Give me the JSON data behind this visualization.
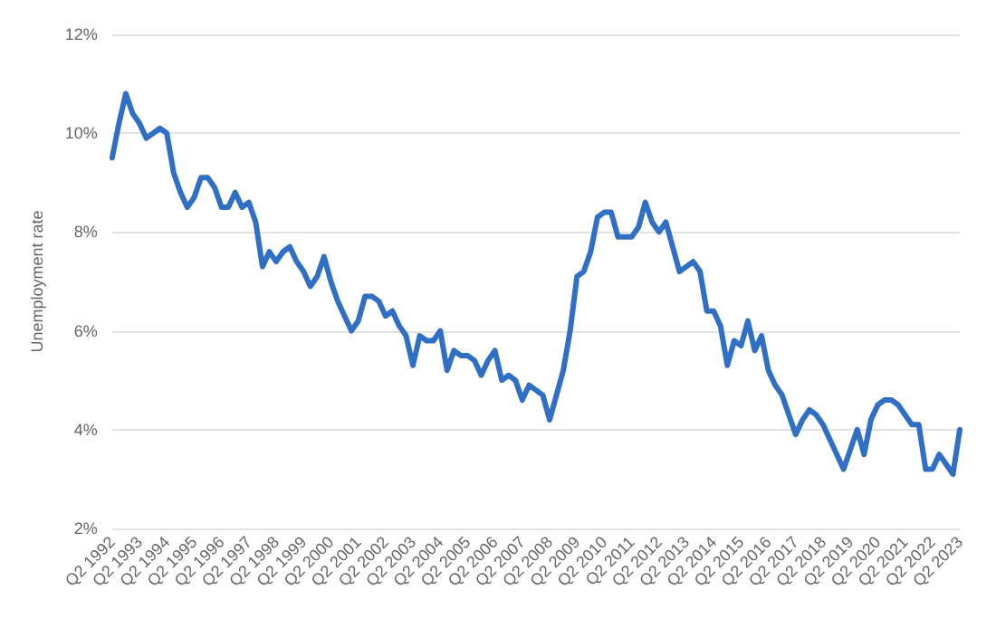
{
  "chart_data": {
    "type": "line",
    "ylabel": "Unemployment rate",
    "categories": [
      "Q2 1992",
      null,
      null,
      null,
      "Q2 1993",
      null,
      null,
      null,
      "Q2 1994",
      null,
      null,
      null,
      "Q2 1995",
      null,
      null,
      null,
      "Q2 1996",
      null,
      null,
      null,
      "Q2 1997",
      null,
      null,
      null,
      "Q2 1998",
      null,
      null,
      null,
      "Q2 1999",
      null,
      null,
      null,
      "Q2 2000",
      null,
      null,
      null,
      "Q2 2001",
      null,
      null,
      null,
      "Q2 2002",
      null,
      null,
      null,
      "Q2 2003",
      null,
      null,
      null,
      "Q2 2004",
      null,
      null,
      null,
      "Q2 2005",
      null,
      null,
      null,
      "Q2 2006",
      null,
      null,
      null,
      "Q2 2007",
      null,
      null,
      null,
      "Q2 2008",
      null,
      null,
      null,
      "Q2 2009",
      null,
      null,
      null,
      "Q2 2010",
      null,
      null,
      null,
      "Q2 2011",
      null,
      null,
      null,
      "Q2 2012",
      null,
      null,
      null,
      "Q2 2013",
      null,
      null,
      null,
      "Q2 2014",
      null,
      null,
      null,
      "Q2 2015",
      null,
      null,
      null,
      "Q2 2016",
      null,
      null,
      null,
      "Q2 2017",
      null,
      null,
      null,
      "Q2 2018",
      null,
      null,
      null,
      "Q2 2019",
      null,
      null,
      null,
      "Q2 2020",
      null,
      null,
      null,
      "Q2 2021",
      null,
      null,
      null,
      "Q2 2022",
      null,
      null,
      null,
      "Q2 2023"
    ],
    "series": [
      {
        "color": "#2f6fc6",
        "values": [
          9.5,
          10.2,
          10.8,
          10.4,
          10.2,
          9.9,
          10.0,
          10.1,
          10.0,
          9.2,
          8.8,
          8.5,
          8.7,
          9.1,
          9.1,
          8.9,
          8.5,
          8.5,
          8.8,
          8.5,
          8.6,
          8.2,
          7.3,
          7.6,
          7.4,
          7.6,
          7.7,
          7.4,
          7.2,
          6.9,
          7.1,
          7.5,
          7.0,
          6.6,
          6.3,
          6.0,
          6.2,
          6.7,
          6.7,
          6.6,
          6.3,
          6.4,
          6.1,
          5.9,
          5.3,
          5.9,
          5.8,
          5.8,
          6.0,
          5.2,
          5.6,
          5.5,
          5.5,
          5.4,
          5.1,
          5.4,
          5.6,
          5.0,
          5.1,
          5.0,
          4.6,
          4.9,
          4.8,
          4.7,
          4.2,
          4.7,
          5.2,
          6.0,
          7.1,
          7.2,
          7.6,
          8.3,
          8.4,
          8.4,
          7.9,
          7.9,
          7.9,
          8.1,
          8.6,
          8.2,
          8.0,
          8.2,
          7.7,
          7.2,
          7.3,
          7.4,
          7.2,
          6.4,
          6.4,
          6.1,
          5.3,
          5.8,
          5.7,
          6.2,
          5.6,
          5.9,
          5.2,
          4.9,
          4.7,
          4.3,
          3.9,
          4.2,
          4.4,
          4.3,
          4.1,
          3.8,
          3.5,
          3.2,
          3.6,
          4.0,
          3.5,
          4.2,
          4.5,
          4.6,
          4.6,
          4.5,
          4.3,
          4.1,
          4.1,
          3.2,
          3.2,
          3.5,
          3.3,
          3.1,
          4.0
        ]
      }
    ],
    "ylim": [
      2,
      12
    ],
    "yticks": [
      {
        "value": 2,
        "label": "2%"
      },
      {
        "value": 4,
        "label": "4%"
      },
      {
        "value": 6,
        "label": "6%"
      },
      {
        "value": 8,
        "label": "8%"
      },
      {
        "value": 10,
        "label": "10%"
      },
      {
        "value": 12,
        "label": "12%"
      }
    ],
    "grid": "y"
  }
}
